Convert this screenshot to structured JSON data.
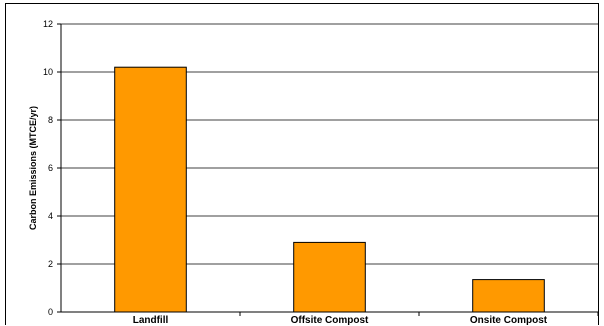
{
  "chart_data": {
    "type": "bar",
    "title": "",
    "xlabel": "",
    "ylabel": "Carbon Emissions (MTCE/yr)",
    "categories": [
      "Landfill",
      "Offsite Compost",
      "Onsite Compost"
    ],
    "values": [
      10.2,
      2.9,
      1.35
    ],
    "ylim": [
      0,
      12
    ],
    "yticks": [
      0,
      2,
      4,
      6,
      8,
      10,
      12
    ],
    "grid": true,
    "legend": "none",
    "colors": {
      "bar_fill": "#ff9900",
      "bar_stroke": "#000000",
      "grid": "#000000",
      "plot_background": "#ffffff"
    }
  }
}
